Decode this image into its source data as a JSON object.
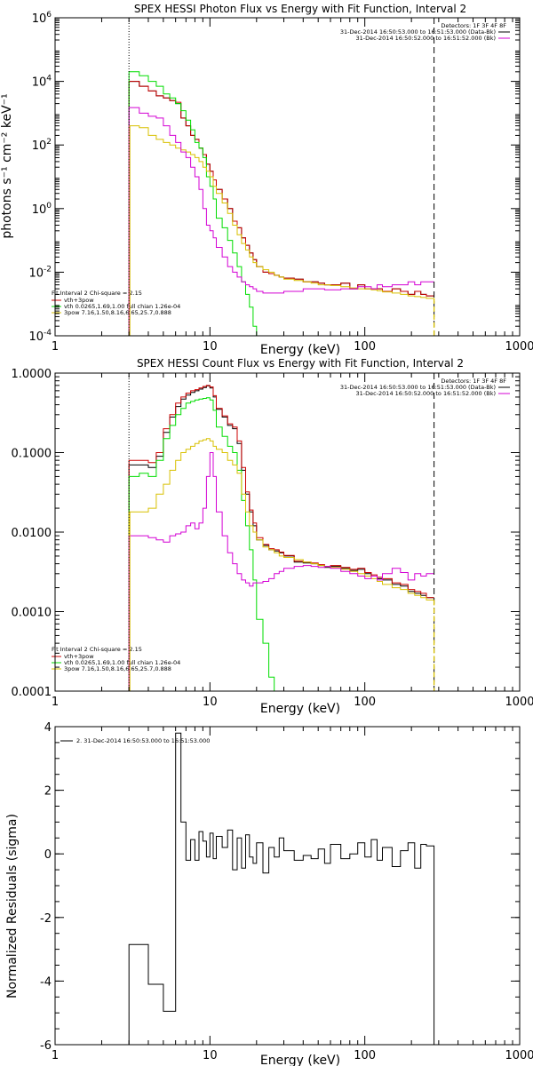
{
  "colors": {
    "black": "#000000",
    "red": "#cc0000",
    "green": "#00dd00",
    "yellow": "#d8c000",
    "magenta": "#d400d4"
  },
  "chart_data": [
    {
      "type": "line",
      "title": "SPEX HESSI Photon Flux vs Energy with Fit Function, Interval 2",
      "xlabel": "Energy (keV)",
      "ylabel": "photons s⁻¹ cm⁻² keV⁻¹",
      "xscale": "log",
      "yscale": "log",
      "xlim": [
        1,
        1000
      ],
      "ylim": [
        0.0001,
        1000000
      ],
      "xticks": [
        1,
        10,
        100,
        1000
      ],
      "xticklabels": [
        "1",
        "10",
        "100",
        "1000"
      ],
      "yticks": [
        0.0001,
        0.01,
        1,
        100,
        10000,
        1000000
      ],
      "yticklabels": [
        [
          "10",
          "-4"
        ],
        [
          "10",
          "-2"
        ],
        [
          "10",
          "0"
        ],
        [
          "10",
          "2"
        ],
        [
          "10",
          "4"
        ],
        [
          "10",
          "6"
        ]
      ],
      "vlines": [
        {
          "x": 3.0,
          "style": "dotted"
        },
        {
          "x": 280,
          "style": "dashed"
        }
      ],
      "legend_top_right": [
        "Detectors: 1F 3F 4F 8F",
        "31-Dec-2014 16:50:53.000 to 16:51:53.000 (Data-Bk)",
        "31-Dec-2014 16:50:52.000 to 16:51:52.000 (Bk)"
      ],
      "legend_bottom_left": [
        "Fit Interval 2   Chi-square = 2.15",
        "vth+3pow",
        "vth 0.0265,1.69,1.00  full chian 1.26e-04",
        "3pow 7.16,1.50,8.16,6.65,25.7,0.888"
      ],
      "bin_edges": [
        3.0,
        3.5,
        4.0,
        4.5,
        5.0,
        5.5,
        6.0,
        6.5,
        7.0,
        7.5,
        8.0,
        8.5,
        9.0,
        9.5,
        10.0,
        10.5,
        11.0,
        12.0,
        13.0,
        14.0,
        15.0,
        16.0,
        17.0,
        18.0,
        19.0,
        20.0,
        22.0,
        24.0,
        26.0,
        28.0,
        30.0,
        35.0,
        40.0,
        45.0,
        50.0,
        55.0,
        60.0,
        70.0,
        80.0,
        90.0,
        100.0,
        110.0,
        120.0,
        130.0,
        150.0,
        170.0,
        190.0,
        210.0,
        230.0,
        250.0,
        280.0
      ],
      "series": [
        {
          "name": "data",
          "color": "black",
          "values": [
            10000,
            7000,
            5000,
            3500,
            3000,
            2500,
            2000,
            700,
            400,
            200,
            150,
            80,
            50,
            25,
            15,
            8,
            4,
            2,
            1,
            0.4,
            0.25,
            0.12,
            0.07,
            0.04,
            0.025,
            0.015,
            0.01,
            0.009,
            0.008,
            0.007,
            0.0065,
            0.006,
            0.005,
            0.005,
            0.0045,
            0.004,
            0.004,
            0.0045,
            0.003,
            0.004,
            0.003,
            0.003,
            0.003,
            0.0025,
            0.003,
            0.0025,
            0.002,
            0.0025,
            0.002,
            0.0018
          ]
        },
        {
          "name": "vth+3pow",
          "color": "red",
          "values": [
            10000,
            7000,
            5000,
            3500,
            3000,
            2500,
            2200,
            700,
            400,
            200,
            150,
            80,
            50,
            25,
            15,
            8,
            4,
            2,
            1,
            0.4,
            0.25,
            0.12,
            0.07,
            0.04,
            0.025,
            0.015,
            0.01,
            0.009,
            0.008,
            0.007,
            0.0065,
            0.006,
            0.005,
            0.005,
            0.0045,
            0.004,
            0.004,
            0.0045,
            0.003,
            0.004,
            0.003,
            0.003,
            0.003,
            0.0025,
            0.003,
            0.0025,
            0.002,
            0.0025,
            0.002,
            0.0018
          ]
        },
        {
          "name": "vth",
          "color": "green",
          "values": [
            20000,
            15000,
            10000,
            7000,
            4000,
            3000,
            2000,
            1200,
            600,
            300,
            120,
            80,
            40,
            10,
            5,
            2,
            0.5,
            0.25,
            0.1,
            0.04,
            0.015,
            0.005,
            0.002,
            0.0008,
            0.0002
          ]
        },
        {
          "name": "3pow",
          "color": "yellow",
          "values": [
            400,
            350,
            200,
            150,
            120,
            100,
            80,
            70,
            60,
            50,
            40,
            30,
            20,
            15,
            10,
            5,
            3,
            1.5,
            0.7,
            0.3,
            0.15,
            0.08,
            0.05,
            0.03,
            0.02,
            0.015,
            0.012,
            0.01,
            0.008,
            0.007,
            0.006,
            0.0055,
            0.005,
            0.0045,
            0.004,
            0.004,
            0.0038,
            0.0035,
            0.0032,
            0.003,
            0.003,
            0.0028,
            0.0026,
            0.0024,
            0.0022,
            0.002,
            0.0018,
            0.0017,
            0.0016,
            0.0015
          ]
        },
        {
          "name": "background",
          "color": "magenta",
          "values": [
            1500,
            1000,
            800,
            700,
            400,
            200,
            120,
            60,
            40,
            20,
            10,
            4,
            1,
            0.3,
            0.2,
            0.12,
            0.06,
            0.03,
            0.015,
            0.01,
            0.007,
            0.005,
            0.004,
            0.0035,
            0.003,
            0.0025,
            0.0022,
            0.0022,
            0.0022,
            0.0022,
            0.0025,
            0.0025,
            0.003,
            0.003,
            0.003,
            0.0028,
            0.0028,
            0.003,
            0.003,
            0.0035,
            0.0035,
            0.003,
            0.004,
            0.0035,
            0.004,
            0.004,
            0.005,
            0.004,
            0.005,
            0.005
          ]
        }
      ]
    },
    {
      "type": "line",
      "title": "SPEX HESSI Count Flux vs Energy with Fit Function, Interval 2",
      "xlabel": "Energy (keV)",
      "ylabel": "",
      "xscale": "log",
      "yscale": "log",
      "xlim": [
        1,
        1000
      ],
      "ylim": [
        0.0001,
        1
      ],
      "xticks": [
        1,
        10,
        100,
        1000
      ],
      "xticklabels": [
        "1",
        "10",
        "100",
        "1000"
      ],
      "yticks": [
        0.0001,
        0.001,
        0.01,
        0.1,
        1
      ],
      "yticklabels": [
        "0.0001",
        "0.0010",
        "0.0100",
        "0.1000",
        "1.0000"
      ],
      "vlines": [
        {
          "x": 3.0,
          "style": "dotted"
        },
        {
          "x": 280,
          "style": "dashed"
        }
      ],
      "legend_top_right": [
        "Detectors: 1F 3F 4F 8F",
        "31-Dec-2014 16:50:53.000 to 16:51:53.000 (Data-Bk)",
        "31-Dec-2014 16:50:52.000 to 16:51:52.000 (Bk)"
      ],
      "legend_bottom_left": [
        "Fit Interval 2   Chi-square = 2.15",
        "vth+3pow",
        "vth 0.0265,1.69,1.00  full chian 1.26e-04",
        "3pow 7.16,1.50,8.16,6.65,25.7,0.888"
      ],
      "bin_edges": [
        3.0,
        3.5,
        4.0,
        4.5,
        5.0,
        5.5,
        6.0,
        6.5,
        7.0,
        7.5,
        8.0,
        8.5,
        9.0,
        9.5,
        10.0,
        10.5,
        11.0,
        12.0,
        13.0,
        14.0,
        15.0,
        16.0,
        17.0,
        18.0,
        19.0,
        20.0,
        22.0,
        24.0,
        26.0,
        28.0,
        30.0,
        35.0,
        40.0,
        45.0,
        50.0,
        55.0,
        60.0,
        70.0,
        80.0,
        90.0,
        100.0,
        110.0,
        120.0,
        130.0,
        150.0,
        170.0,
        190.0,
        210.0,
        230.0,
        250.0,
        280.0
      ],
      "series": [
        {
          "name": "data",
          "color": "black",
          "values": [
            0.07,
            0.07,
            0.065,
            0.09,
            0.18,
            0.28,
            0.38,
            0.47,
            0.53,
            0.57,
            0.6,
            0.63,
            0.66,
            0.69,
            0.65,
            0.5,
            0.35,
            0.28,
            0.22,
            0.2,
            0.13,
            0.06,
            0.03,
            0.018,
            0.012,
            0.008,
            0.0068,
            0.006,
            0.0058,
            0.0055,
            0.005,
            0.0042,
            0.0041,
            0.004,
            0.0038,
            0.0036,
            0.0037,
            0.0035,
            0.0033,
            0.0034,
            0.003,
            0.0028,
            0.0026,
            0.0025,
            0.0022,
            0.0021,
            0.0018,
            0.0017,
            0.0016,
            0.0015
          ]
        },
        {
          "name": "vth+3pow",
          "color": "red",
          "values": [
            0.08,
            0.08,
            0.075,
            0.1,
            0.2,
            0.3,
            0.42,
            0.5,
            0.56,
            0.6,
            0.62,
            0.65,
            0.68,
            0.7,
            0.67,
            0.52,
            0.36,
            0.29,
            0.23,
            0.21,
            0.14,
            0.065,
            0.032,
            0.019,
            0.013,
            0.0085,
            0.007,
            0.0062,
            0.006,
            0.0056,
            0.0051,
            0.0043,
            0.0042,
            0.0041,
            0.0039,
            0.0037,
            0.0038,
            0.0036,
            0.0034,
            0.0035,
            0.0031,
            0.0029,
            0.0027,
            0.0026,
            0.0023,
            0.0022,
            0.0019,
            0.0018,
            0.0017,
            0.0015
          ]
        },
        {
          "name": "vth",
          "color": "green",
          "values": [
            0.05,
            0.055,
            0.05,
            0.08,
            0.15,
            0.22,
            0.3,
            0.36,
            0.42,
            0.44,
            0.46,
            0.47,
            0.48,
            0.49,
            0.46,
            0.34,
            0.21,
            0.16,
            0.12,
            0.1,
            0.06,
            0.025,
            0.012,
            0.006,
            0.0025,
            0.0008,
            0.0004,
            0.00015
          ]
        },
        {
          "name": "3pow",
          "color": "yellow",
          "values": [
            0.018,
            0.018,
            0.02,
            0.03,
            0.04,
            0.06,
            0.08,
            0.1,
            0.11,
            0.12,
            0.13,
            0.14,
            0.145,
            0.15,
            0.14,
            0.12,
            0.11,
            0.1,
            0.08,
            0.07,
            0.055,
            0.03,
            0.018,
            0.012,
            0.01,
            0.008,
            0.0065,
            0.006,
            0.0055,
            0.005,
            0.0048,
            0.0045,
            0.0042,
            0.004,
            0.0038,
            0.0037,
            0.0036,
            0.0034,
            0.0032,
            0.003,
            0.0028,
            0.0026,
            0.0024,
            0.0022,
            0.002,
            0.0019,
            0.0017,
            0.0016,
            0.0015,
            0.0014
          ]
        },
        {
          "name": "background",
          "color": "magenta",
          "values": [
            0.009,
            0.009,
            0.0085,
            0.008,
            0.0075,
            0.009,
            0.0095,
            0.01,
            0.012,
            0.013,
            0.011,
            0.013,
            0.02,
            0.05,
            0.1,
            0.05,
            0.018,
            0.009,
            0.0055,
            0.004,
            0.003,
            0.0025,
            0.0023,
            0.0021,
            0.0023,
            0.0023,
            0.0024,
            0.0026,
            0.003,
            0.0032,
            0.0035,
            0.0037,
            0.0038,
            0.0037,
            0.0036,
            0.0037,
            0.0035,
            0.0032,
            0.003,
            0.0028,
            0.0026,
            0.0028,
            0.0025,
            0.003,
            0.0035,
            0.0031,
            0.0025,
            0.003,
            0.0028,
            0.003
          ]
        }
      ]
    },
    {
      "type": "line",
      "title": "",
      "xlabel": "Energy (keV)",
      "ylabel": "Normalized Residuals (sigma)",
      "xscale": "log",
      "yscale": "linear",
      "xlim": [
        1,
        1000
      ],
      "ylim": [
        -6,
        4
      ],
      "xticks": [
        1,
        10,
        100,
        1000
      ],
      "xticklabels": [
        "1",
        "10",
        "100",
        "1000"
      ],
      "yticks": [
        -6,
        -4,
        -2,
        0,
        2,
        4
      ],
      "yticklabels": [
        "-6",
        "-4",
        "-2",
        "0",
        "2",
        "4"
      ],
      "legend": [
        "2. 31-Dec-2014 16:50:53.000 to 16:51:53.000"
      ],
      "bin_edges": [
        3.0,
        4.0,
        5.0,
        6.0,
        6.5,
        7.0,
        7.5,
        8.0,
        8.5,
        9.0,
        9.5,
        10.0,
        10.5,
        11.0,
        12.0,
        13.0,
        14.0,
        15.0,
        16.0,
        17.0,
        18.0,
        19.0,
        20.0,
        22.0,
        24.0,
        26.0,
        28.0,
        30.0,
        35.0,
        40.0,
        45.0,
        50.0,
        55.0,
        60.0,
        70.0,
        80.0,
        90.0,
        100.0,
        110.0,
        120.0,
        130.0,
        150.0,
        170.0,
        190.0,
        210.0,
        230.0,
        250.0,
        280.0
      ],
      "series": [
        {
          "name": "residuals",
          "color": "black",
          "values": [
            -2.85,
            -4.1,
            -4.95,
            3.8,
            1.0,
            -0.2,
            0.45,
            -0.2,
            0.7,
            0.4,
            -0.1,
            0.65,
            -0.15,
            0.55,
            0.2,
            0.75,
            -0.5,
            0.5,
            -0.45,
            0.6,
            -0.1,
            -0.3,
            0.35,
            -0.6,
            0.2,
            -0.1,
            0.5,
            0.1,
            -0.2,
            -0.05,
            -0.15,
            0.15,
            -0.3,
            0.3,
            -0.15,
            0.0,
            0.35,
            -0.1,
            0.45,
            -0.2,
            0.2,
            -0.4,
            0.1,
            0.35,
            -0.45,
            0.3,
            0.25
          ]
        }
      ]
    }
  ]
}
